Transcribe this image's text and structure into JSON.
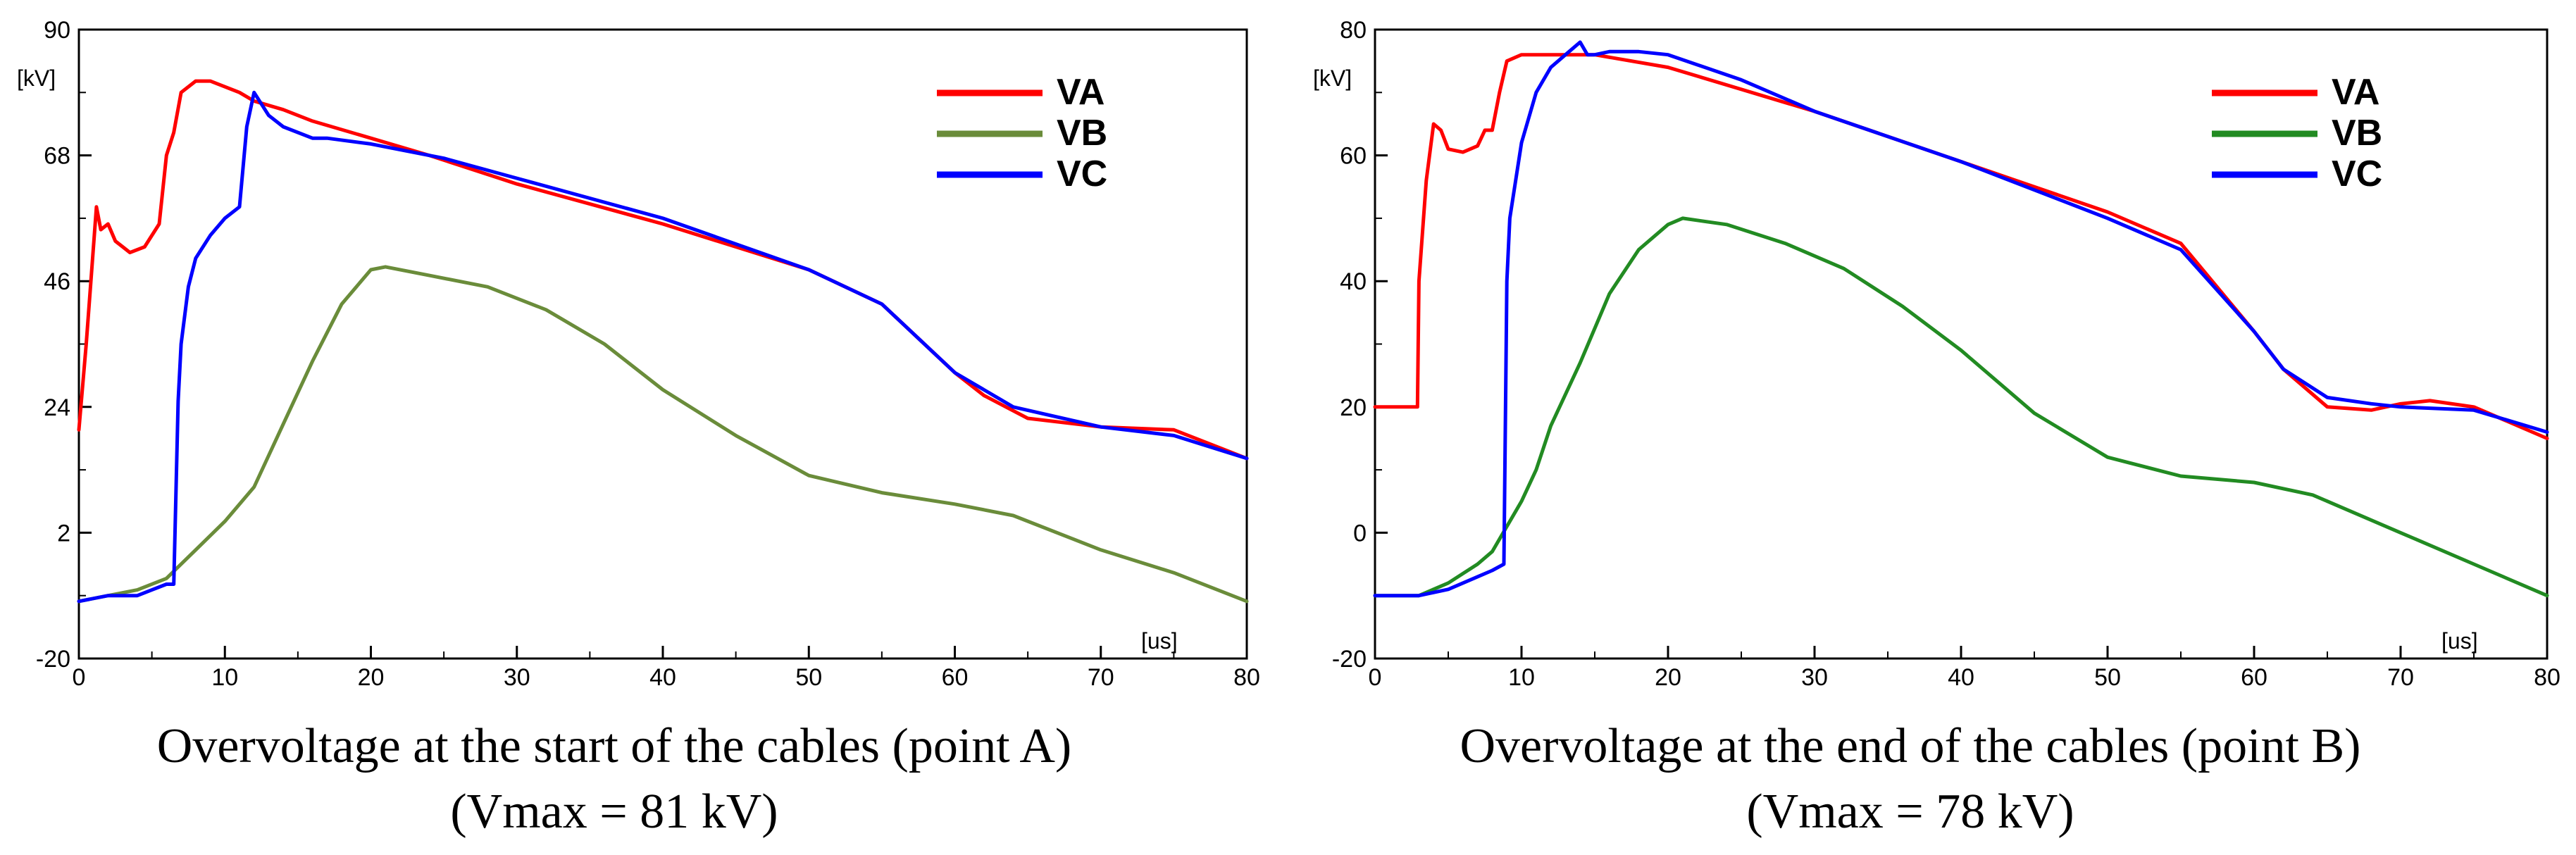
{
  "chart_data": [
    {
      "type": "line",
      "title": "Overvoltage at the start of the cables (point A)",
      "subtitle": "(Vmax = 81 kV)",
      "xlabel": "[us]",
      "ylabel": "[kV]",
      "xlim": [
        0,
        80
      ],
      "ylim": [
        -20,
        90
      ],
      "xticks": [
        "0",
        "10",
        "20",
        "30",
        "40",
        "50",
        "60",
        "70",
        "80"
      ],
      "xtick_values": [
        0,
        10,
        20,
        30,
        40,
        50,
        60,
        70,
        80
      ],
      "yticks": [
        "-20",
        "2",
        "24",
        "46",
        "68",
        "90"
      ],
      "ytick_values": [
        -20,
        2,
        24,
        46,
        68,
        90
      ],
      "legend_position": "top-right",
      "series": [
        {
          "name": "VA",
          "color": "#ff0000",
          "x": [
            0,
            0.5,
            1.2,
            1.5,
            2,
            2.5,
            3,
            3.5,
            4.5,
            5.5,
            6,
            6.5,
            7,
            8,
            9,
            10,
            11,
            12,
            14,
            16,
            20,
            24,
            30,
            40,
            50,
            55,
            60,
            62,
            65,
            70,
            75,
            80
          ],
          "y": [
            20,
            35,
            59,
            55,
            56,
            53,
            52,
            51,
            52,
            56,
            68,
            72,
            79,
            81,
            81,
            80,
            79,
            77.5,
            76,
            74,
            71,
            68,
            63,
            56,
            48,
            42,
            30,
            26,
            22,
            20.5,
            20,
            15
          ]
        },
        {
          "name": "VB",
          "color": "#6a8c3a",
          "x": [
            0,
            2,
            4,
            6,
            8,
            10,
            12,
            14,
            16,
            18,
            20,
            21,
            24,
            28,
            32,
            36,
            40,
            45,
            50,
            55,
            60,
            64,
            70,
            75,
            80
          ],
          "y": [
            -10,
            -9,
            -8,
            -6,
            -1,
            4,
            10,
            21,
            32,
            42,
            48,
            48.5,
            47,
            45,
            41,
            35,
            27,
            19,
            12,
            9,
            7,
            5,
            -1,
            -5,
            -10
          ]
        },
        {
          "name": "VC",
          "color": "#0000ff",
          "x": [
            0,
            2,
            4,
            5,
            6,
            6.5,
            6.8,
            7,
            7.5,
            8,
            9,
            10,
            11,
            11.5,
            12,
            13,
            14,
            16,
            17,
            20,
            25,
            30,
            40,
            50,
            55,
            60,
            64,
            70,
            75,
            80
          ],
          "y": [
            -10,
            -9,
            -9,
            -8,
            -7,
            -7,
            25,
            35,
            45,
            50,
            54,
            57,
            59,
            73,
            79,
            75,
            73,
            71,
            71,
            70,
            67.5,
            64,
            57,
            48,
            42,
            30,
            24,
            20.5,
            19,
            15
          ]
        }
      ]
    },
    {
      "type": "line",
      "title": "Overvoltage at the end of the cables (point B)",
      "subtitle": "(Vmax = 78 kV)",
      "xlabel": "[us]",
      "ylabel": "[kV]",
      "xlim": [
        0,
        80
      ],
      "ylim": [
        -20,
        80
      ],
      "xticks": [
        "0",
        "10",
        "20",
        "30",
        "40",
        "50",
        "60",
        "70",
        "80"
      ],
      "xtick_values": [
        0,
        10,
        20,
        30,
        40,
        50,
        60,
        70,
        80
      ],
      "yticks": [
        "-20",
        "0",
        "20",
        "40",
        "60",
        "80"
      ],
      "ytick_values": [
        -20,
        0,
        20,
        40,
        60,
        80
      ],
      "legend_position": "top-right",
      "series": [
        {
          "name": "VA",
          "color": "#ff0000",
          "x": [
            0,
            2.9,
            3,
            3.5,
            4,
            4.5,
            5,
            6,
            7,
            7.5,
            8,
            8.5,
            9,
            10,
            12,
            15,
            20,
            30,
            40,
            50,
            55,
            60,
            62,
            65,
            68,
            70,
            72,
            75,
            80
          ],
          "y": [
            20,
            20,
            40,
            56,
            65,
            64,
            61,
            60.5,
            61.5,
            64,
            64,
            70,
            75,
            76,
            76,
            76,
            74,
            67,
            59,
            51,
            46,
            32,
            26,
            20,
            19.5,
            20.5,
            21,
            20,
            15
          ]
        },
        {
          "name": "VB",
          "color": "#228b22",
          "x": [
            0,
            3,
            5,
            7,
            8,
            9,
            10,
            11,
            12,
            14,
            16,
            18,
            20,
            21,
            24,
            28,
            32,
            36,
            40,
            45,
            50,
            55,
            60,
            64,
            66,
            70,
            75,
            80
          ],
          "y": [
            -10,
            -10,
            -8,
            -5,
            -3,
            1,
            5,
            10,
            17,
            27,
            38,
            45,
            49,
            50,
            49,
            46,
            42,
            36,
            29,
            19,
            12,
            9,
            8,
            6,
            4,
            0,
            -5,
            -10
          ]
        },
        {
          "name": "VC",
          "color": "#0000ff",
          "x": [
            0,
            3,
            5,
            7,
            8,
            8.8,
            9,
            9.2,
            10,
            11,
            12,
            13,
            14,
            14.5,
            15,
            16,
            18,
            20,
            25,
            30,
            40,
            50,
            55,
            60,
            62,
            65,
            68,
            70,
            75,
            80
          ],
          "y": [
            -10,
            -10,
            -9,
            -7,
            -6,
            -5,
            40,
            50,
            62,
            70,
            74,
            76,
            78,
            76,
            76,
            76.5,
            76.5,
            76,
            72,
            67,
            59,
            50,
            45,
            32,
            26,
            21.5,
            20.5,
            20,
            19.5,
            16
          ]
        }
      ]
    }
  ]
}
